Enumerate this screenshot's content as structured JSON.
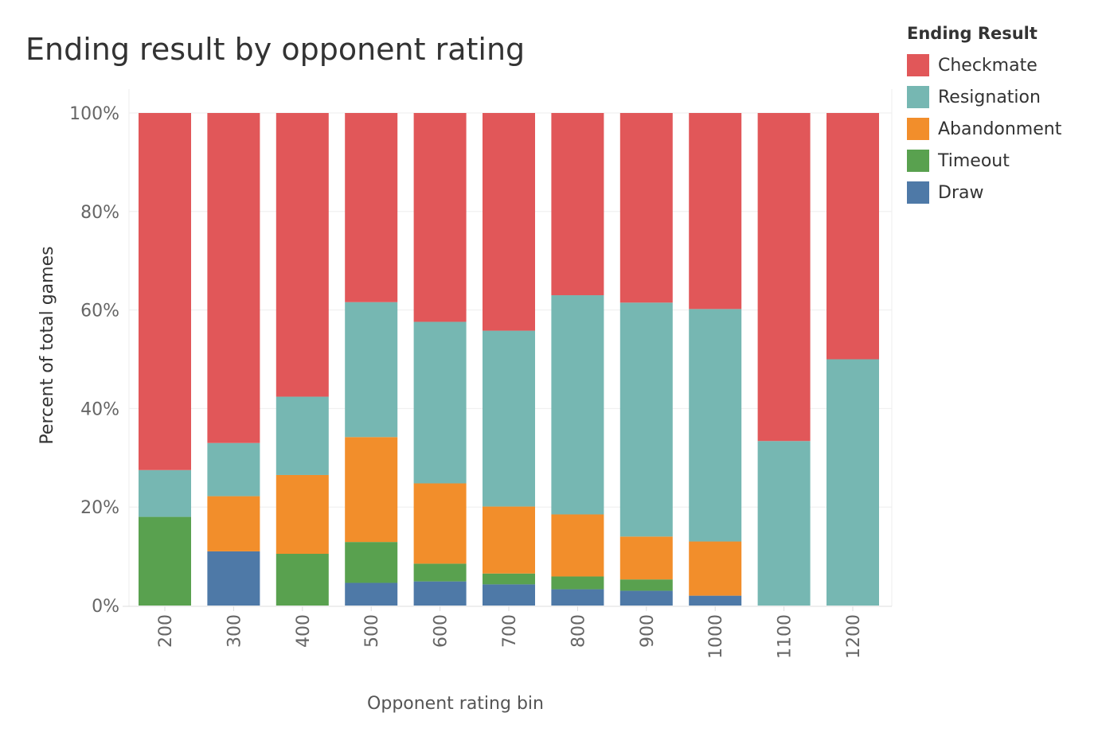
{
  "chart_data": {
    "type": "bar",
    "stacked": true,
    "title": "Ending result by opponent rating",
    "xlabel": "Opponent rating bin",
    "ylabel": "Percent of total games",
    "ylim": [
      0,
      100
    ],
    "yticks": [
      "0%",
      "20%",
      "40%",
      "60%",
      "80%",
      "100%"
    ],
    "yticks_values": [
      0,
      20,
      40,
      60,
      80,
      100
    ],
    "categories": [
      "200",
      "300",
      "400",
      "500",
      "600",
      "700",
      "800",
      "900",
      "1000",
      "1100",
      "1200"
    ],
    "legend": {
      "title": "Ending Result",
      "position": "top-right"
    },
    "grid": true,
    "series": [
      {
        "name": "Draw",
        "color": "#4e79a7",
        "values": [
          0,
          11,
          0,
          4.6,
          4.9,
          4.3,
          3.3,
          3.0,
          2.0,
          0,
          0
        ]
      },
      {
        "name": "Timeout",
        "color": "#59a14f",
        "values": [
          18,
          0,
          10.5,
          8.3,
          3.6,
          2.2,
          2.6,
          2.3,
          0,
          0,
          0
        ]
      },
      {
        "name": "Abandonment",
        "color": "#f28e2b",
        "values": [
          0,
          11.2,
          16,
          21.3,
          16.3,
          13.6,
          12.6,
          8.7,
          11,
          0,
          0
        ]
      },
      {
        "name": "Resignation",
        "color": "#76b7b2",
        "values": [
          9.5,
          10.8,
          15.9,
          27.4,
          32.8,
          35.7,
          44.5,
          47.5,
          47.2,
          33.4,
          50
        ]
      },
      {
        "name": "Checkmate",
        "color": "#e15759",
        "values": [
          72.5,
          67,
          57.6,
          38.4,
          42.4,
          44.2,
          37,
          38.5,
          39.8,
          66.6,
          50
        ]
      }
    ]
  }
}
